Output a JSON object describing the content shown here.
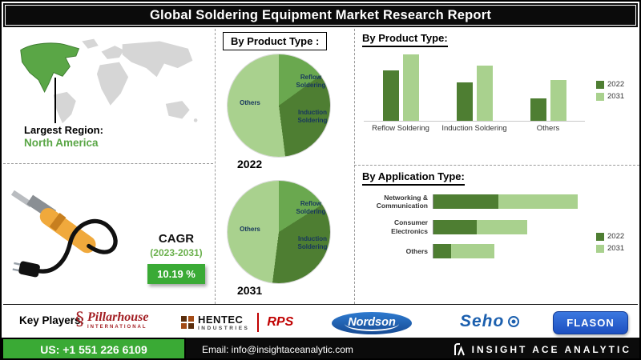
{
  "header": {
    "title": "Global Soldering Equipment Market Research Report"
  },
  "map": {
    "region_label": "Largest Region:",
    "region_value": "North America"
  },
  "cagr": {
    "label": "CAGR",
    "period": "(2023-2031)",
    "value": "10.19 %"
  },
  "sections": {
    "pie_title": "By Product Type :",
    "bar_title": "By Product Type:",
    "app_title": "By Application Type:"
  },
  "colors": {
    "green_dark": "#4e7e32",
    "green_mid": "#6aa84f",
    "green_light": "#a9d18e",
    "accent_green": "#3aaa35",
    "map_green": "#5aa646",
    "map_gray": "#d6d6d6",
    "blue": "#1b5fae",
    "red": "#c00000"
  },
  "key_players": {
    "label": "Key Players:",
    "pillarhouse": {
      "name": "Pillarhouse",
      "sub": "INTERNATIONAL"
    },
    "hentec": {
      "name": "HENTEC",
      "sub": "INDUSTRIES",
      "rps": "RPS"
    },
    "nordson": {
      "name": "Nordson"
    },
    "seho": {
      "name": "Seho"
    },
    "flason": {
      "name": "FLASON"
    }
  },
  "footer": {
    "phone": "US: +1 551 226 6109",
    "email": "Email: info@insightaceanalytic.com",
    "brand": "INSIGHT ACE ANALYTIC"
  },
  "chart_data": [
    {
      "type": "pie",
      "title": "By Product Type : 2022",
      "year": "2022",
      "labels": [
        "Reflow Soldering",
        "Induction Soldering",
        "Others"
      ],
      "values": [
        15,
        33,
        52
      ],
      "colors": [
        "#6aa84f",
        "#4e7e32",
        "#a9d18e"
      ],
      "note": "share estimated from slice angles; no numeric labels shown"
    },
    {
      "type": "pie",
      "title": "By Product Type : 2031",
      "year": "2031",
      "labels": [
        "Reflow Soldering",
        "Induction Soldering",
        "Others"
      ],
      "values": [
        16,
        36,
        48
      ],
      "colors": [
        "#6aa84f",
        "#4e7e32",
        "#a9d18e"
      ],
      "note": "share estimated from slice angles; no numeric labels shown"
    },
    {
      "type": "bar",
      "title": "By Product Type:",
      "categories": [
        "Reflow Soldering",
        "Induction Soldering",
        "Others"
      ],
      "series": [
        {
          "name": "2022",
          "values": [
            55,
            42,
            24
          ]
        },
        {
          "name": "2031",
          "values": [
            72,
            60,
            44
          ]
        }
      ],
      "colors": [
        "#4e7e32",
        "#a9d18e"
      ],
      "legend_position": "right",
      "note": "relative index values; chart shows no numeric axis"
    },
    {
      "type": "bar",
      "orientation": "horizontal",
      "stacked": true,
      "title": "By Application Type:",
      "categories": [
        "Networking & Communication",
        "Consumer Electronics",
        "Others"
      ],
      "series": [
        {
          "name": "2022",
          "values": [
            45,
            30,
            12
          ]
        },
        {
          "name": "2031",
          "values": [
            55,
            35,
            30
          ]
        }
      ],
      "colors": [
        "#4e7e32",
        "#a9d18e"
      ],
      "legend_position": "right",
      "note": "relative index values; chart shows no numeric axis"
    }
  ]
}
